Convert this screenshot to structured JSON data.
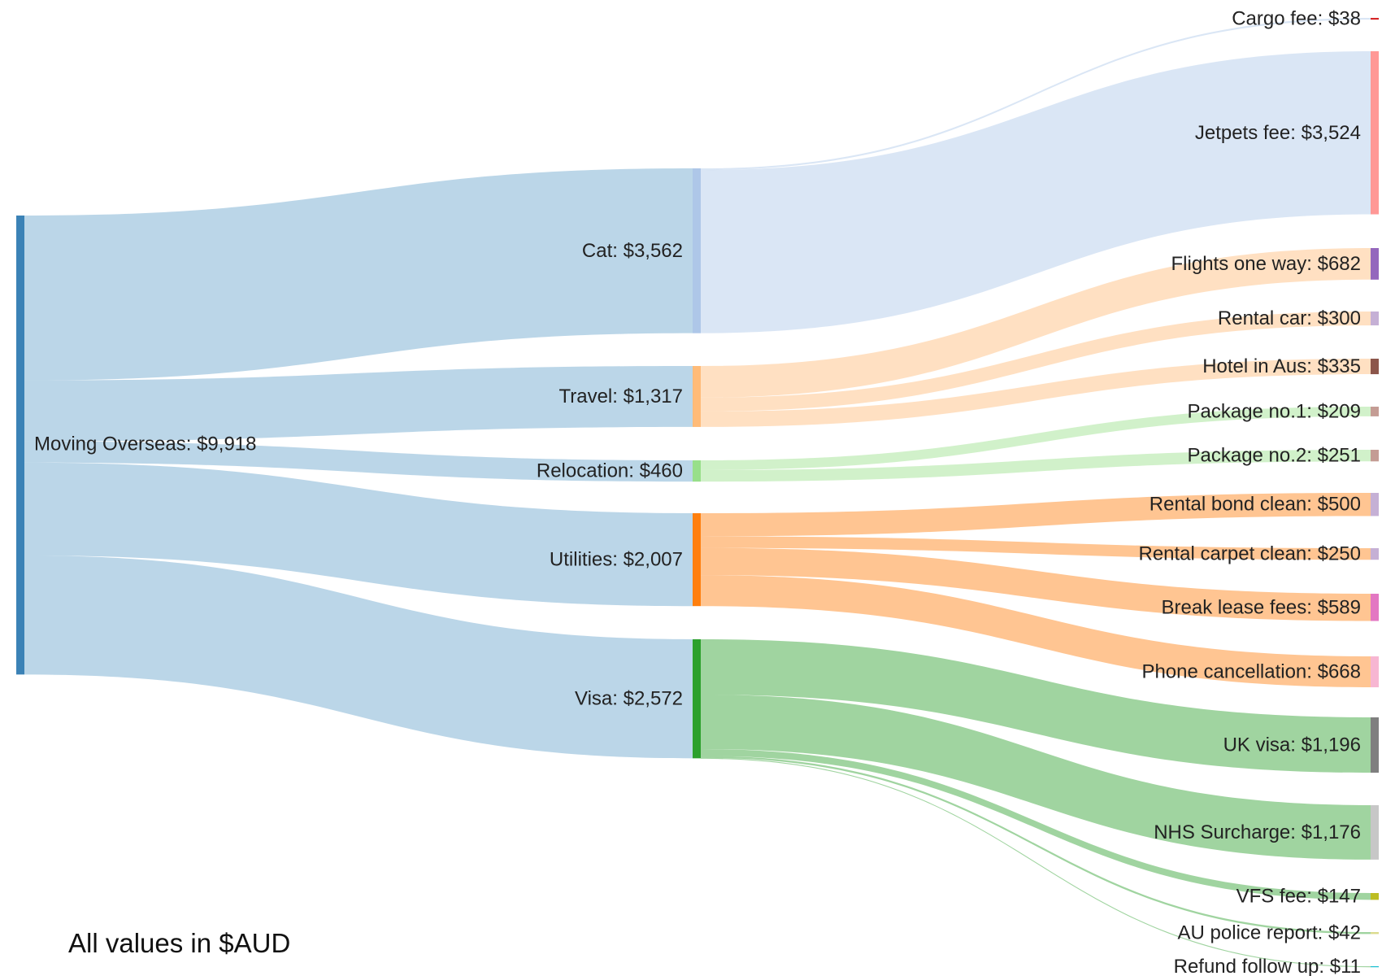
{
  "chart_data": {
    "type": "sankey",
    "title": "",
    "unit_note": "All values in $AUD",
    "nodes": [
      {
        "id": "moving",
        "label": "Moving Overseas: $9,918",
        "value": 9918,
        "column": 0,
        "color": "#3b82b6"
      },
      {
        "id": "cat",
        "label": "Cat: $3,562",
        "value": 3562,
        "column": 1,
        "color": "#aec7e8"
      },
      {
        "id": "travel",
        "label": "Travel: $1,317",
        "value": 1317,
        "column": 1,
        "color": "#ffbb78"
      },
      {
        "id": "relocation",
        "label": "Relocation: $460",
        "value": 460,
        "column": 1,
        "color": "#98df8a"
      },
      {
        "id": "utilities",
        "label": "Utilities: $2,007",
        "value": 2007,
        "column": 1,
        "color": "#ff7f0e"
      },
      {
        "id": "visa",
        "label": "Visa: $2,572",
        "value": 2572,
        "column": 1,
        "color": "#2ca02c"
      },
      {
        "id": "cargo",
        "label": "Cargo fee: $38",
        "value": 38,
        "column": 2,
        "color": "#d62728"
      },
      {
        "id": "jetpets",
        "label": "Jetpets fee: $3,524",
        "value": 3524,
        "column": 2,
        "color": "#ff9896"
      },
      {
        "id": "flights",
        "label": "Flights one way: $682",
        "value": 682,
        "column": 2,
        "color": "#9467bd"
      },
      {
        "id": "rentalcar",
        "label": "Rental car: $300",
        "value": 300,
        "column": 2,
        "color": "#c5b0d5"
      },
      {
        "id": "hotel",
        "label": "Hotel in Aus: $335",
        "value": 335,
        "column": 2,
        "color": "#8c564b"
      },
      {
        "id": "pkg1",
        "label": "Package no.1: $209",
        "value": 209,
        "column": 2,
        "color": "#c49c94"
      },
      {
        "id": "pkg2",
        "label": "Package no.2: $251",
        "value": 251,
        "column": 2,
        "color": "#c49c94"
      },
      {
        "id": "bond",
        "label": "Rental bond clean: $500",
        "value": 500,
        "column": 2,
        "color": "#c5b0d5"
      },
      {
        "id": "carpet",
        "label": "Rental carpet clean: $250",
        "value": 250,
        "column": 2,
        "color": "#c5b0d5"
      },
      {
        "id": "lease",
        "label": "Break lease fees: $589",
        "value": 589,
        "column": 2,
        "color": "#e377c2"
      },
      {
        "id": "phone",
        "label": "Phone cancellation: $668",
        "value": 668,
        "column": 2,
        "color": "#f7b6d2"
      },
      {
        "id": "ukvisa",
        "label": "UK visa: $1,196",
        "value": 1196,
        "column": 2,
        "color": "#7f7f7f"
      },
      {
        "id": "nhs",
        "label": "NHS Surcharge: $1,176",
        "value": 1176,
        "column": 2,
        "color": "#c7c7c7"
      },
      {
        "id": "vfs",
        "label": "VFS fee: $147",
        "value": 147,
        "column": 2,
        "color": "#bcbd22"
      },
      {
        "id": "police",
        "label": "AU police report: $42",
        "value": 42,
        "column": 2,
        "color": "#dbdb8d"
      },
      {
        "id": "refund",
        "label": "Refund follow up: $11",
        "value": 11,
        "column": 2,
        "color": "#17becf"
      }
    ],
    "links": [
      {
        "source": "moving",
        "target": "cat",
        "value": 3562
      },
      {
        "source": "moving",
        "target": "travel",
        "value": 1317
      },
      {
        "source": "moving",
        "target": "relocation",
        "value": 460
      },
      {
        "source": "moving",
        "target": "utilities",
        "value": 2007
      },
      {
        "source": "moving",
        "target": "visa",
        "value": 2572
      },
      {
        "source": "cat",
        "target": "cargo",
        "value": 38
      },
      {
        "source": "cat",
        "target": "jetpets",
        "value": 3524
      },
      {
        "source": "travel",
        "target": "flights",
        "value": 682
      },
      {
        "source": "travel",
        "target": "rentalcar",
        "value": 300
      },
      {
        "source": "travel",
        "target": "hotel",
        "value": 335
      },
      {
        "source": "relocation",
        "target": "pkg1",
        "value": 209
      },
      {
        "source": "relocation",
        "target": "pkg2",
        "value": 251
      },
      {
        "source": "utilities",
        "target": "bond",
        "value": 500
      },
      {
        "source": "utilities",
        "target": "carpet",
        "value": 250
      },
      {
        "source": "utilities",
        "target": "lease",
        "value": 589
      },
      {
        "source": "utilities",
        "target": "phone",
        "value": 668
      },
      {
        "source": "visa",
        "target": "ukvisa",
        "value": 1196
      },
      {
        "source": "visa",
        "target": "nhs",
        "value": 1176
      },
      {
        "source": "visa",
        "target": "vfs",
        "value": 147
      },
      {
        "source": "visa",
        "target": "police",
        "value": 42
      },
      {
        "source": "visa",
        "target": "refund",
        "value": 11
      }
    ]
  }
}
